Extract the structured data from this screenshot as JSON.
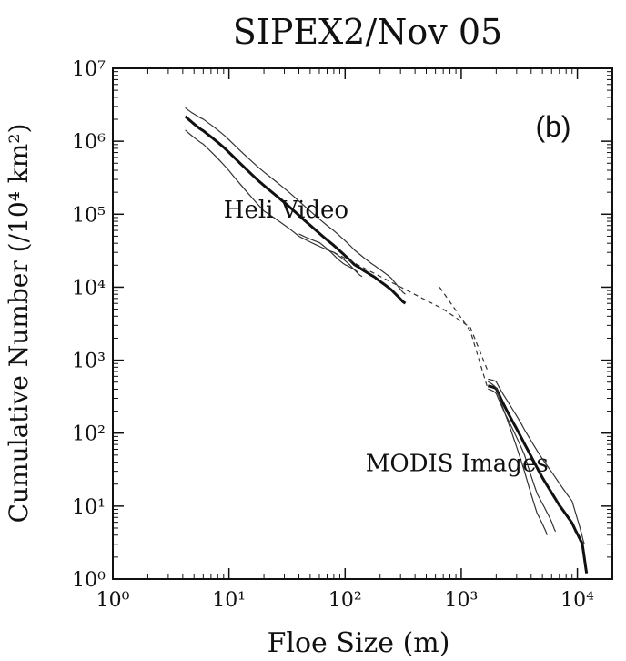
{
  "chart_data": {
    "type": "line",
    "title": "SIPEX2/Nov 05",
    "panel_label": "(b)",
    "xlabel": "Floe Size (m)",
    "ylabel": "Cumulative Number (/10⁴ km²)",
    "xscale": "log",
    "yscale": "log",
    "xlim": [
      1,
      20000
    ],
    "ylim": [
      1,
      10000000
    ],
    "x_ticks": [
      {
        "value": 1,
        "label": "10⁰"
      },
      {
        "value": 10,
        "label": "10¹"
      },
      {
        "value": 100,
        "label": "10²"
      },
      {
        "value": 1000,
        "label": "10³"
      },
      {
        "value": 10000,
        "label": "10⁴"
      }
    ],
    "y_ticks": [
      {
        "value": 1,
        "label": "10⁰"
      },
      {
        "value": 10,
        "label": "10¹"
      },
      {
        "value": 100,
        "label": "10²"
      },
      {
        "value": 1000,
        "label": "10³"
      },
      {
        "value": 10000,
        "label": "10⁴"
      },
      {
        "value": 100000,
        "label": "10⁵"
      },
      {
        "value": 1000000,
        "label": "10⁶"
      },
      {
        "value": 10000000,
        "label": "10⁷"
      }
    ],
    "annotations": [
      {
        "text": "Heli Video",
        "x": 9,
        "y": 90000
      },
      {
        "text": "MODIS Images",
        "x": 150,
        "y": 30
      }
    ],
    "series": [
      {
        "group": "Heli Video",
        "style": "thick",
        "x": [
          4.2,
          6,
          10,
          20,
          40,
          80,
          120,
          180,
          250,
          330
        ],
        "y": [
          2200000,
          1400000,
          700000,
          250000,
          95000,
          38000,
          20000,
          14000,
          9000,
          6000
        ]
      },
      {
        "group": "Heli Video",
        "style": "thin",
        "x": [
          4.2,
          6,
          10,
          20,
          40,
          80,
          120,
          180,
          250,
          330
        ],
        "y": [
          2900000,
          2000000,
          1050000,
          380000,
          150000,
          60000,
          32000,
          20000,
          13000,
          8000
        ]
      },
      {
        "group": "Heli Video",
        "style": "thin",
        "x": [
          4.2,
          6,
          10,
          20,
          40,
          80,
          110,
          140
        ],
        "y": [
          1450000,
          900000,
          400000,
          110000,
          50000,
          30000,
          20000,
          14000
        ]
      },
      {
        "group": "Heli Video",
        "style": "thin",
        "x": [
          40,
          60,
          80,
          100,
          130
        ],
        "y": [
          55000,
          40000,
          28000,
          20000,
          16000
        ]
      },
      {
        "group": "fit",
        "style": "dashed",
        "x": [
          80,
          700,
          1200,
          1700
        ],
        "y": [
          30000,
          5000,
          2800,
          700
        ]
      },
      {
        "group": "fit",
        "style": "dashed",
        "x": [
          650,
          1200,
          1700
        ],
        "y": [
          10000,
          2500,
          400
        ]
      },
      {
        "group": "MODIS Images",
        "style": "thick",
        "x": [
          1700,
          2000,
          2500,
          3500,
          5000,
          7000,
          9000,
          11000,
          12000
        ],
        "y": [
          450,
          400,
          200,
          70,
          25,
          10,
          6,
          3,
          1.2
        ]
      },
      {
        "group": "MODIS Images",
        "style": "thin",
        "x": [
          1700,
          2000,
          2500,
          3500,
          5000,
          7000,
          9000,
          10500,
          11500
        ],
        "y": [
          550,
          500,
          280,
          110,
          45,
          20,
          12,
          5,
          3
        ]
      },
      {
        "group": "MODIS Images",
        "style": "thin",
        "x": [
          1700,
          2000,
          2500,
          3500,
          4500,
          6000,
          6500
        ],
        "y": [
          400,
          350,
          160,
          50,
          15,
          6,
          4.5
        ]
      },
      {
        "group": "MODIS Images",
        "style": "thin",
        "x": [
          1700,
          2000,
          2500,
          3500,
          4500,
          5500
        ],
        "y": [
          500,
          420,
          150,
          30,
          8,
          4
        ]
      }
    ]
  }
}
